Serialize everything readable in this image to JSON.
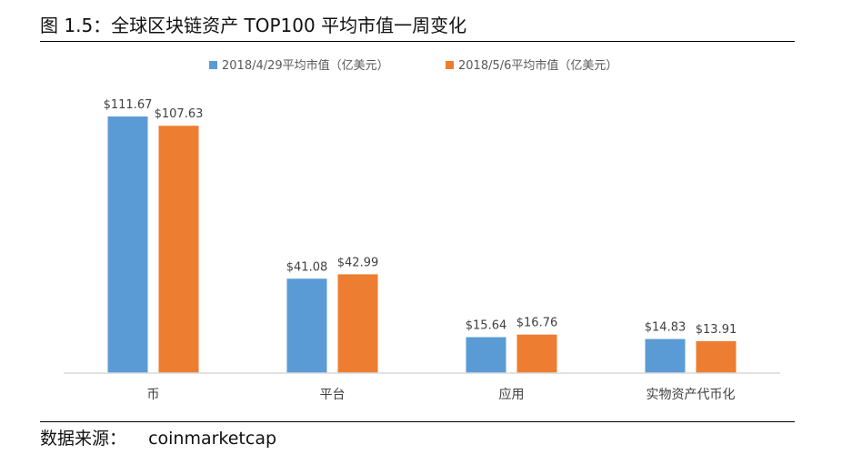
{
  "figure": {
    "title": "图 1.5：全球区块链资产 TOP100 平均市值一周变化",
    "source_label": "数据来源：",
    "source_value": "coinmarketcap"
  },
  "chart_data": {
    "type": "bar",
    "categories": [
      "币",
      "平台",
      "应用",
      "实物资产代币化"
    ],
    "series": [
      {
        "name": "2018/4/29平均市值（亿美元）",
        "color": "#5b9bd5",
        "values": [
          111.67,
          41.08,
          15.64,
          14.83
        ],
        "labels": [
          "$111.67",
          "$41.08",
          "$15.64",
          "$14.83"
        ]
      },
      {
        "name": "2018/5/6平均市值（亿美元）",
        "color": "#ed7d31",
        "values": [
          107.63,
          42.99,
          16.76,
          13.91
        ],
        "labels": [
          "$107.63",
          "$42.99",
          "$16.76",
          "$13.91"
        ]
      }
    ],
    "ylim": [
      0,
      111.67
    ],
    "xlabel": "",
    "ylabel": "",
    "grid": false,
    "legend_position": "top",
    "axis_color": "#d9d9d9"
  }
}
